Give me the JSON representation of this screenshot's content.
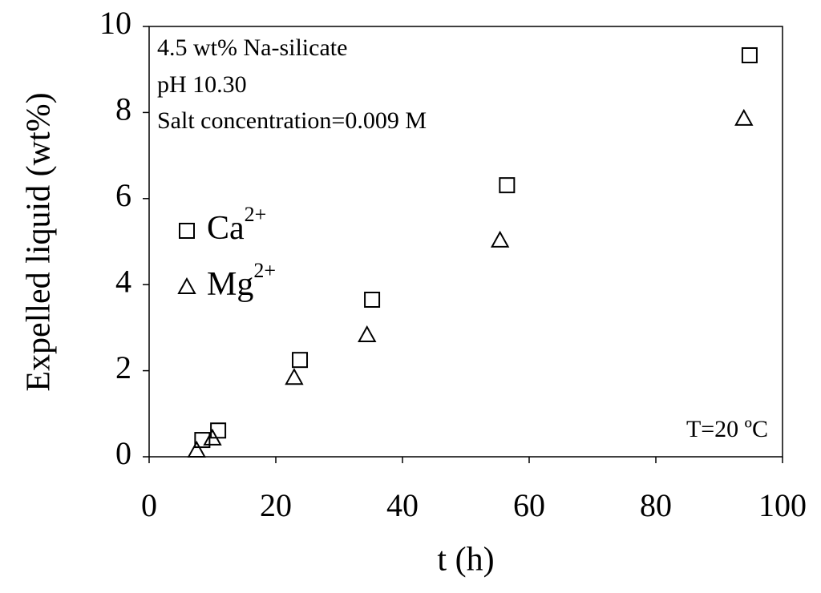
{
  "chart_data": {
    "type": "scatter",
    "x_label": "t (h)",
    "y_label": "Expelled liquid (wt%)",
    "annotations": [
      "4.5 wt% Na-silicate",
      "pH 10.30",
      "Salt concentration=0.009 M",
      "T=20 ºC"
    ],
    "xlim": [
      0,
      100
    ],
    "xticks": [
      0,
      20,
      40,
      60,
      80,
      100
    ],
    "ylim": [
      0,
      10
    ],
    "yticks": [
      0,
      2,
      4,
      6,
      8,
      10
    ],
    "grid": false,
    "series": [
      {
        "name": "Ca2+",
        "marker": "square",
        "color": "#000000",
        "x": [
          8.4,
          10.9,
          23.8,
          35.2,
          56.5,
          94.8
        ],
        "values": [
          0.39,
          0.61,
          2.25,
          3.65,
          6.31,
          9.33
        ]
      },
      {
        "name": "Mg2+",
        "marker": "triangle",
        "color": "#000000",
        "x": [
          7.5,
          10.0,
          22.9,
          34.4,
          55.4,
          93.9
        ],
        "values": [
          0.15,
          0.43,
          1.84,
          2.83,
          5.03,
          7.86
        ]
      }
    ]
  }
}
